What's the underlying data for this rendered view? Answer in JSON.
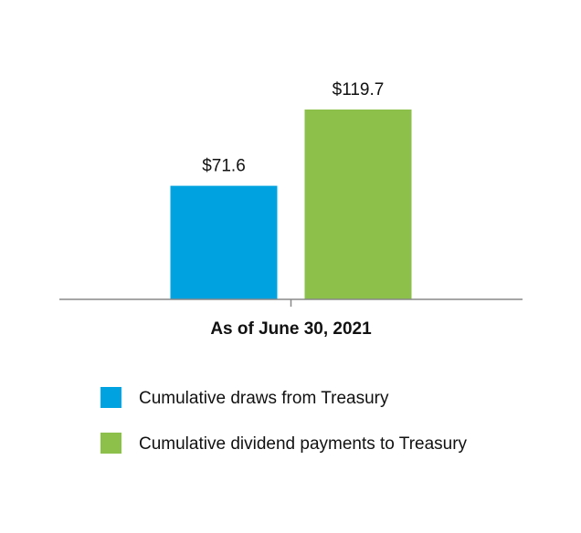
{
  "chart_data": {
    "type": "bar",
    "categories": [
      "As of June 30, 2021"
    ],
    "series": [
      {
        "name": "Cumulative draws from Treasury",
        "color": "#00a3e0",
        "values": [
          71.6
        ],
        "value_labels": [
          "$71.6"
        ]
      },
      {
        "name": "Cumulative dividend payments to Treasury",
        "color": "#8cc04b",
        "values": [
          119.7
        ],
        "value_labels": [
          "$119.7"
        ]
      }
    ]
  }
}
